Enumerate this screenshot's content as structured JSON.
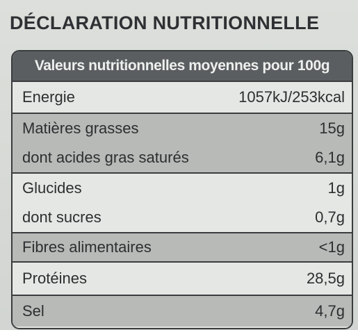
{
  "title": "DÉCLARATION NUTRITIONNELLE",
  "header": "Valeurs nutritionnelles moyennes pour 100g",
  "rows": {
    "energie": {
      "label": "Energie",
      "value": "1057kJ/253kcal"
    },
    "matieres_grasses": {
      "label": "Matières grasses",
      "value": "15g"
    },
    "acides_gras_satures": {
      "label": "dont acides gras saturés",
      "value": "6,1g"
    },
    "glucides": {
      "label": "Glucides",
      "value": "1g"
    },
    "sucres": {
      "label": "dont sucres",
      "value": "0,7g"
    },
    "fibres": {
      "label": "Fibres alimentaires",
      "value": "<1g"
    },
    "proteines": {
      "label": "Protéines",
      "value": "28,5g"
    },
    "sel": {
      "label": "Sel",
      "value": "4,7g"
    }
  },
  "colors": {
    "header_bg": "#5a5e60",
    "shaded_bg": "#b7bab7",
    "light_bg": "#e4e7e3",
    "border": "#3a3c3e"
  }
}
